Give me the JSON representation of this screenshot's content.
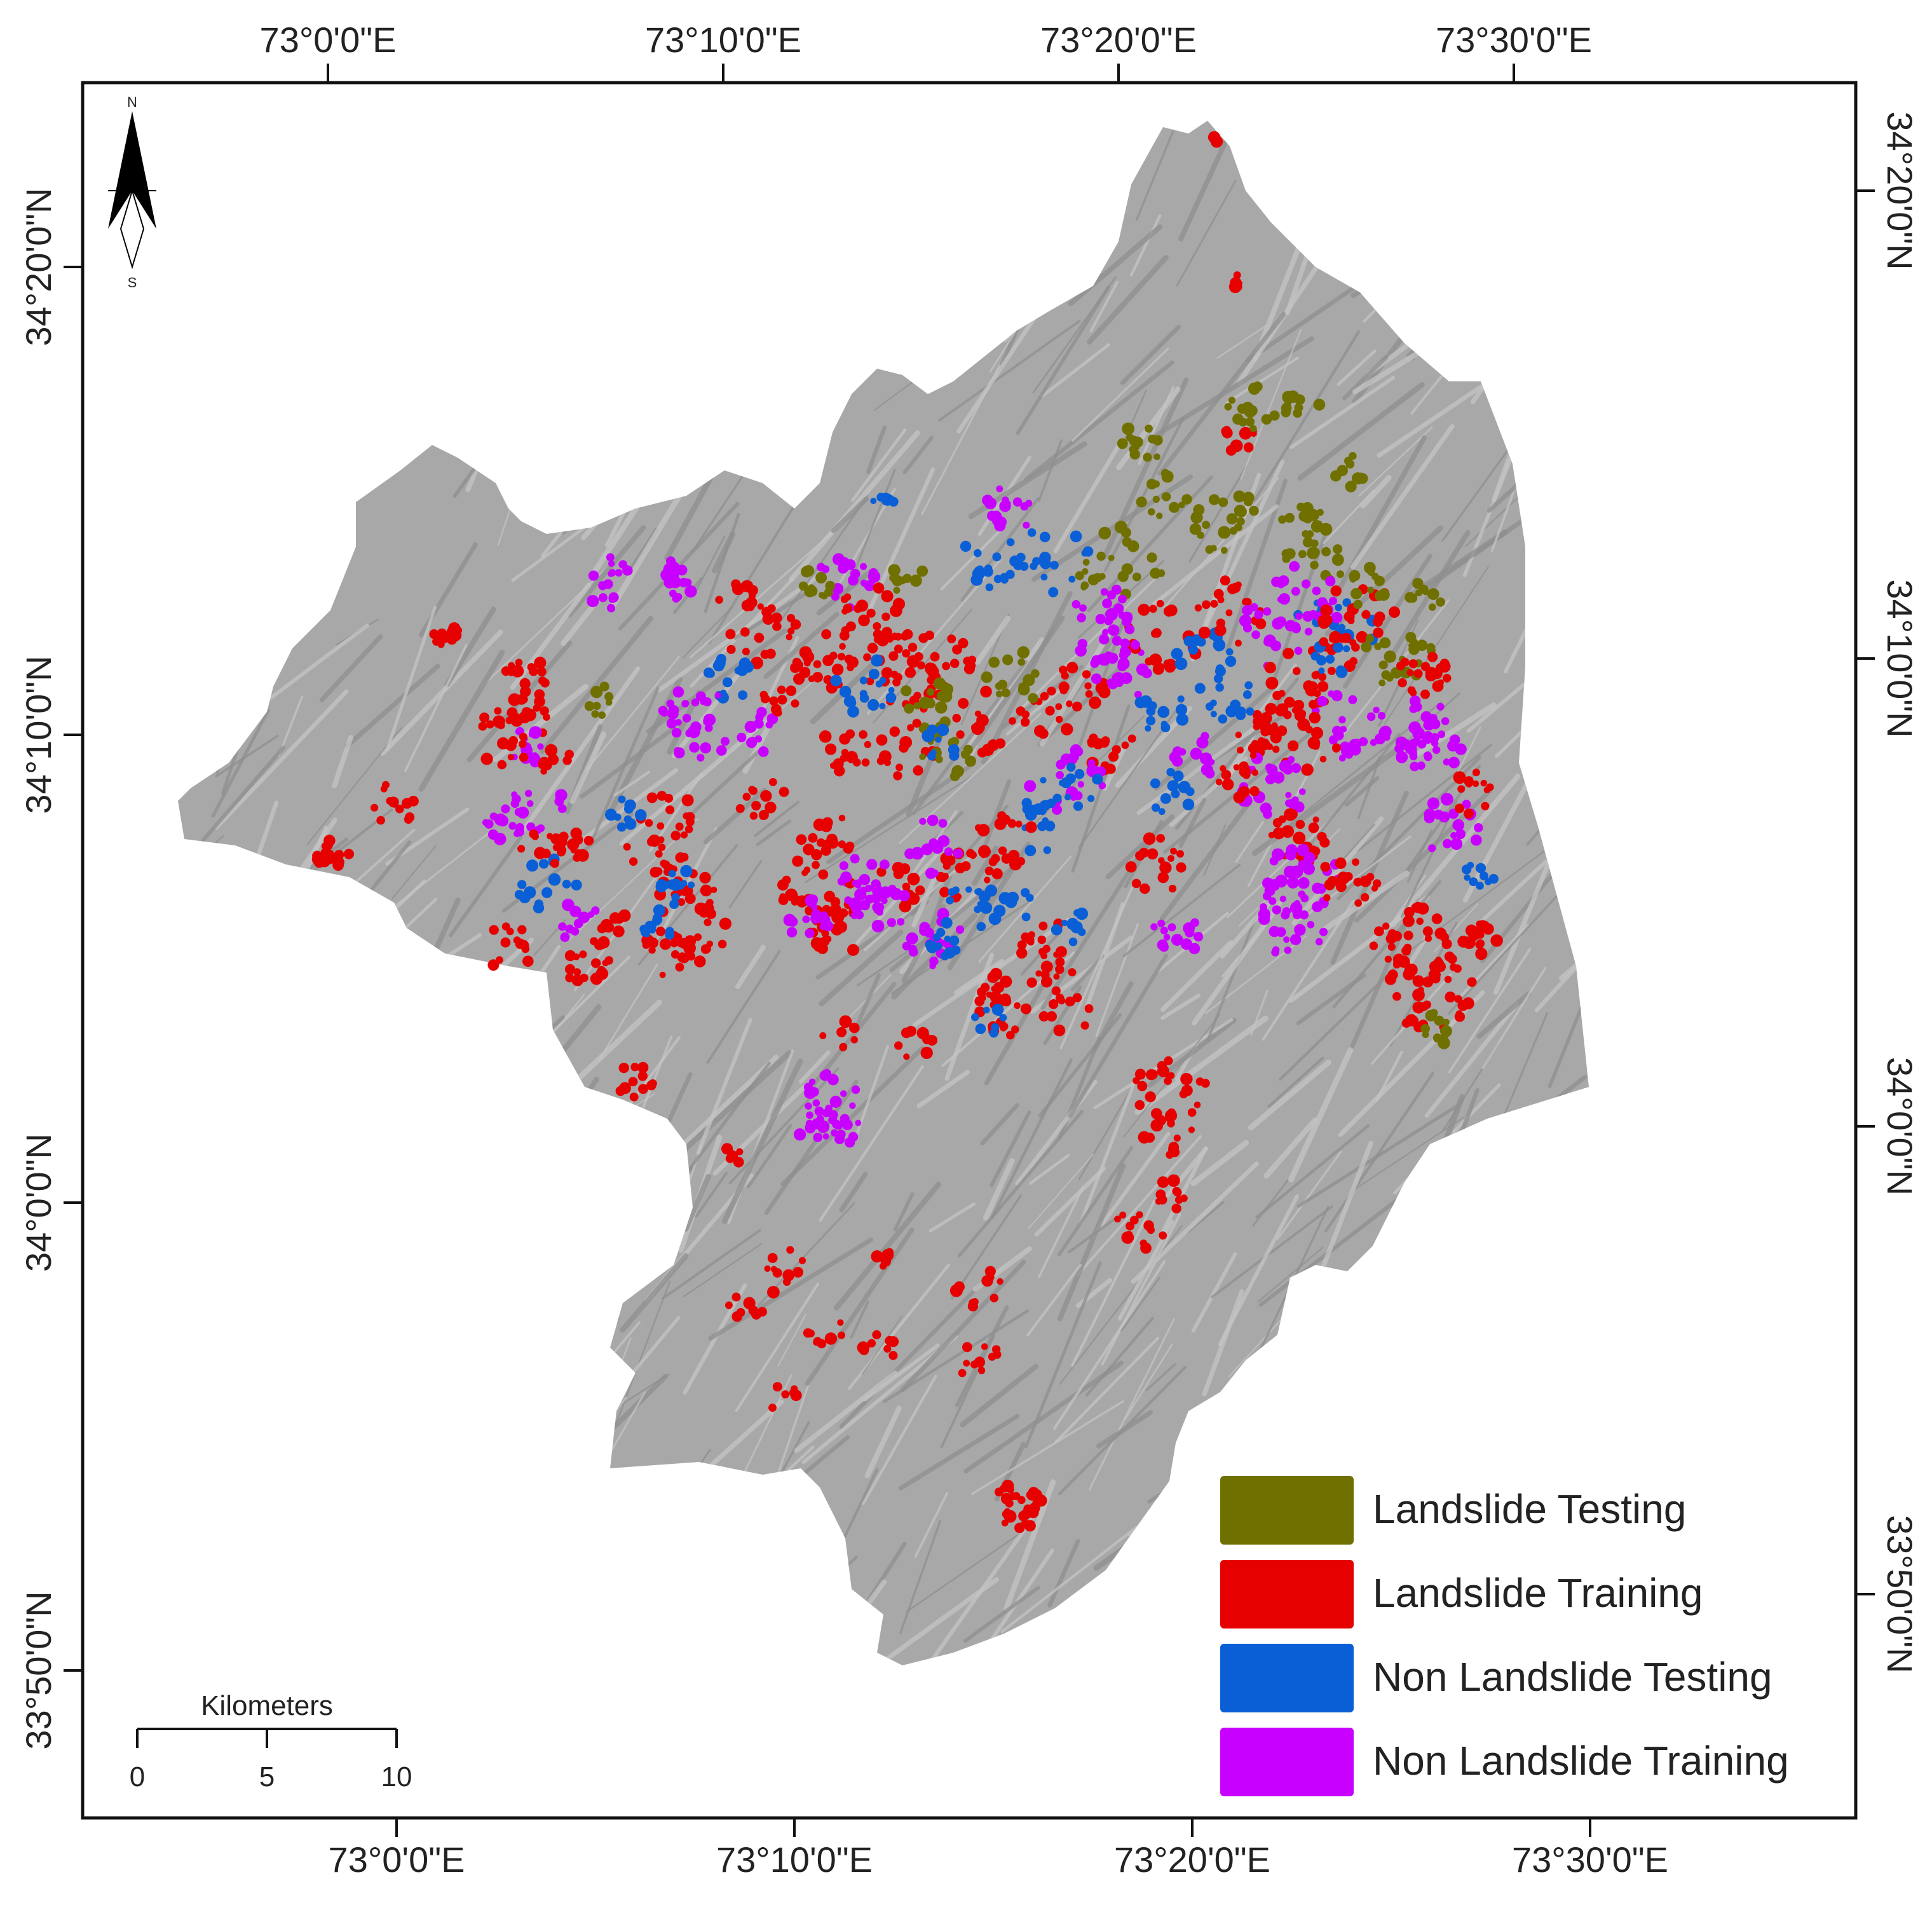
{
  "axes": {
    "top": [
      "73°0'0\"E",
      "73°10'0\"E",
      "73°20'0\"E",
      "73°30'0\"E"
    ],
    "bottom": [
      "73°0'0\"E",
      "73°10'0\"E",
      "73°20'0\"E",
      "73°30'0\"E"
    ],
    "left": [
      "34°20'0\"N",
      "34°10'0\"N",
      "34°0'0\"N",
      "33°50'0\"N"
    ],
    "right": [
      "34°20'0\"N",
      "34°10'0\"N",
      "34°0'0\"N",
      "33°50'0\"N"
    ]
  },
  "north_arrow": {
    "north": "N",
    "south": "S"
  },
  "scale_bar": {
    "unit": "Kilometers",
    "ticks": [
      "0",
      "5",
      "10"
    ]
  },
  "legend": [
    {
      "label": "Landslide Testing",
      "color": "#707000"
    },
    {
      "label": "Landslide Training",
      "color": "#e60000"
    },
    {
      "label": "Non Landslide Testing",
      "color": "#0a5fd6"
    },
    {
      "label": "Non Landslide Training",
      "color": "#c800ff"
    }
  ],
  "colors": {
    "terrain": "#a8a8a8",
    "terrain_shade": "#8f8f8f",
    "terrain_light": "#c4c4c4",
    "frame": "#111111"
  }
}
